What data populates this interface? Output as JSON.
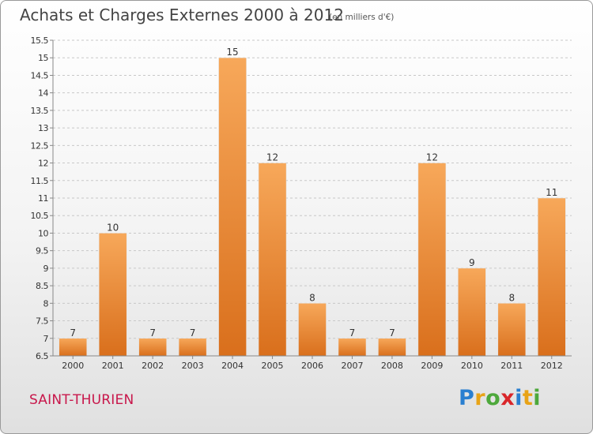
{
  "header": {
    "title": "Achats et Charges Externes 2000 à 2012",
    "unit_note": "(en milliers d'€)"
  },
  "footer": {
    "commune": "SAINT-THURIEN",
    "logo": {
      "letters": [
        "P",
        "r",
        "o",
        "x",
        "i",
        "t",
        "i"
      ],
      "colors": [
        "#2a7fd0",
        "#e8a317",
        "#4da83b",
        "#d9262a",
        "#2a7fd0",
        "#e8a317",
        "#4da83b"
      ]
    }
  },
  "chart_data": {
    "type": "bar",
    "categories": [
      "2000",
      "2001",
      "2002",
      "2003",
      "2004",
      "2005",
      "2006",
      "2007",
      "2008",
      "2009",
      "2010",
      "2011",
      "2012"
    ],
    "values": [
      7,
      10,
      7,
      7,
      15,
      12,
      8,
      7,
      7,
      12,
      9,
      8,
      11
    ],
    "data_labels": [
      "7",
      "10",
      "7",
      "7",
      "15",
      "12",
      "8",
      "7",
      "7",
      "12",
      "9",
      "8",
      "11"
    ],
    "ylim": [
      6.5,
      15.5
    ],
    "yticks": [
      "6.5",
      "7",
      "7.5",
      "8",
      "8.5",
      "9",
      "9.5",
      "10",
      "10.5",
      "11",
      "11.5",
      "12",
      "12.5",
      "13",
      "13.5",
      "14",
      "14.5",
      "15",
      "15.5"
    ],
    "grid": "horizontal-dashed",
    "colors": {
      "bar_light": "#f7a85a",
      "bar_dark": "#d96f1c",
      "grid": "#c8c8c8",
      "axis": "#888888"
    }
  }
}
